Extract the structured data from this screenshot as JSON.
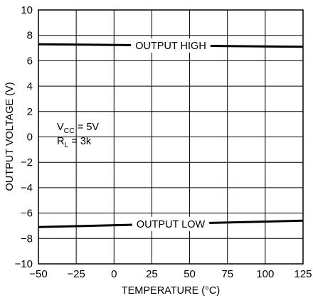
{
  "chart_data": {
    "type": "line",
    "title": "",
    "xlabel": "TEMPERATURE (°C)",
    "ylabel": "OUTPUT VOLTAGE (V)",
    "xlim": [
      -50,
      125
    ],
    "ylim": [
      -10,
      10
    ],
    "xticks": [
      -50,
      -25,
      0,
      25,
      50,
      75,
      100,
      125
    ],
    "yticks": [
      -10,
      -8,
      -6,
      -4,
      -2,
      0,
      2,
      4,
      6,
      8,
      10
    ],
    "grid": true,
    "series": [
      {
        "name": "OUTPUT HIGH",
        "x": [
          -50,
          125
        ],
        "y": [
          7.3,
          7.1
        ]
      },
      {
        "name": "OUTPUT LOW",
        "x": [
          -50,
          125
        ],
        "y": [
          -7.1,
          -6.6
        ]
      }
    ],
    "conditions": {
      "vcc_main": "V",
      "vcc_sub": "CC",
      "vcc_value": " = 5V",
      "rl_main": "R",
      "rl_sub": "L",
      "rl_value": " = 3k"
    }
  }
}
